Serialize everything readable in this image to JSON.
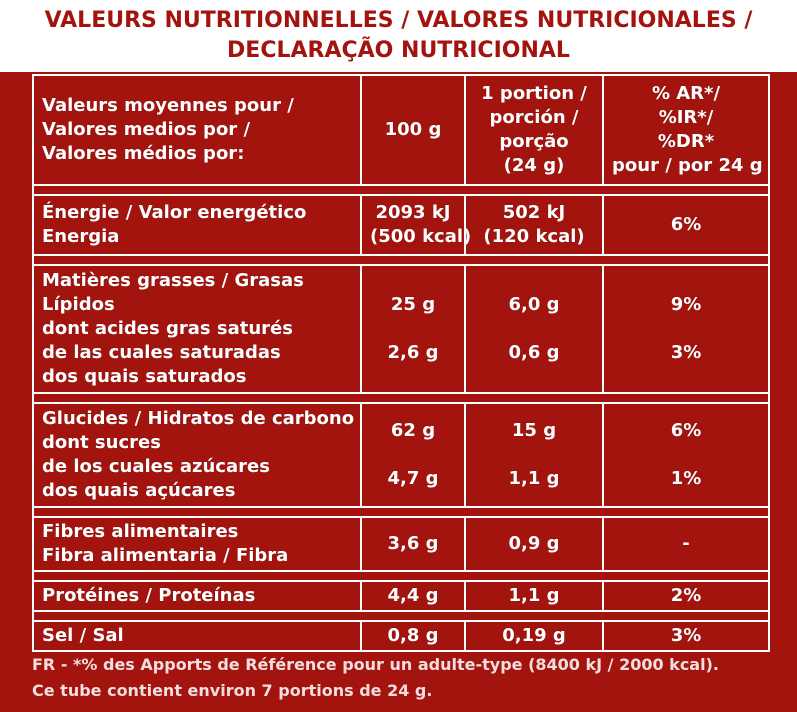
{
  "header": {
    "line1": "VALEURS NUTRITIONNELLES / VALORES NUTRICIONALES /",
    "line2": "DECLARAÇÃO NUTRICIONAL"
  },
  "table": {
    "head": {
      "col1": [
        "Valeurs moyennes pour /",
        "Valores medios por /",
        "Valores médios por:"
      ],
      "col2": [
        "100 g"
      ],
      "col3": [
        "1 portion /",
        "porción /",
        "porção",
        "(24 g)"
      ],
      "col4": [
        "% AR*/",
        "%IR*/",
        "%DR*",
        "pour / por 24 g"
      ]
    },
    "rows": [
      {
        "label": [
          "Énergie / Valor energético",
          "Energia"
        ],
        "per100": [
          "2093 kJ",
          "(500 kcal)"
        ],
        "portion": [
          "502 kJ",
          "(120 kcal)"
        ],
        "ar": [
          "6%"
        ]
      },
      {
        "label": [
          "Matières grasses / Grasas",
          "Lípidos",
          "dont acides gras saturés",
          "de las cuales saturadas",
          "dos quais saturados"
        ],
        "per100": [
          "25 g",
          "2,6 g"
        ],
        "portion": [
          "6,0 g",
          "0,6 g"
        ],
        "ar": [
          "9%",
          "3%"
        ]
      },
      {
        "label": [
          "Glucides / Hidratos de carbono",
          "dont sucres",
          "de los cuales azúcares",
          "dos quais açúcares"
        ],
        "per100": [
          "62 g",
          "4,7 g"
        ],
        "portion": [
          "15 g",
          "1,1 g"
        ],
        "ar": [
          "6%",
          "1%"
        ]
      },
      {
        "label": [
          "Fibres alimentaires",
          "Fibra alimentaria / Fibra"
        ],
        "per100": [
          "3,6 g"
        ],
        "portion": [
          "0,9 g"
        ],
        "ar": [
          "-"
        ]
      },
      {
        "label": [
          "Protéines / Proteínas"
        ],
        "per100": [
          "4,4 g"
        ],
        "portion": [
          "1,1 g"
        ],
        "ar": [
          "2%"
        ]
      },
      {
        "label": [
          "Sel / Sal"
        ],
        "per100": [
          "0,8 g"
        ],
        "portion": [
          "0,19 g"
        ],
        "ar": [
          "3%"
        ]
      }
    ]
  },
  "footer": {
    "line1": "FR - *% des Apports de Référence pour un adulte-type (8400 kJ / 2000 kcal).",
    "line2": "Ce tube contient environ 7 portions de 24 g."
  }
}
